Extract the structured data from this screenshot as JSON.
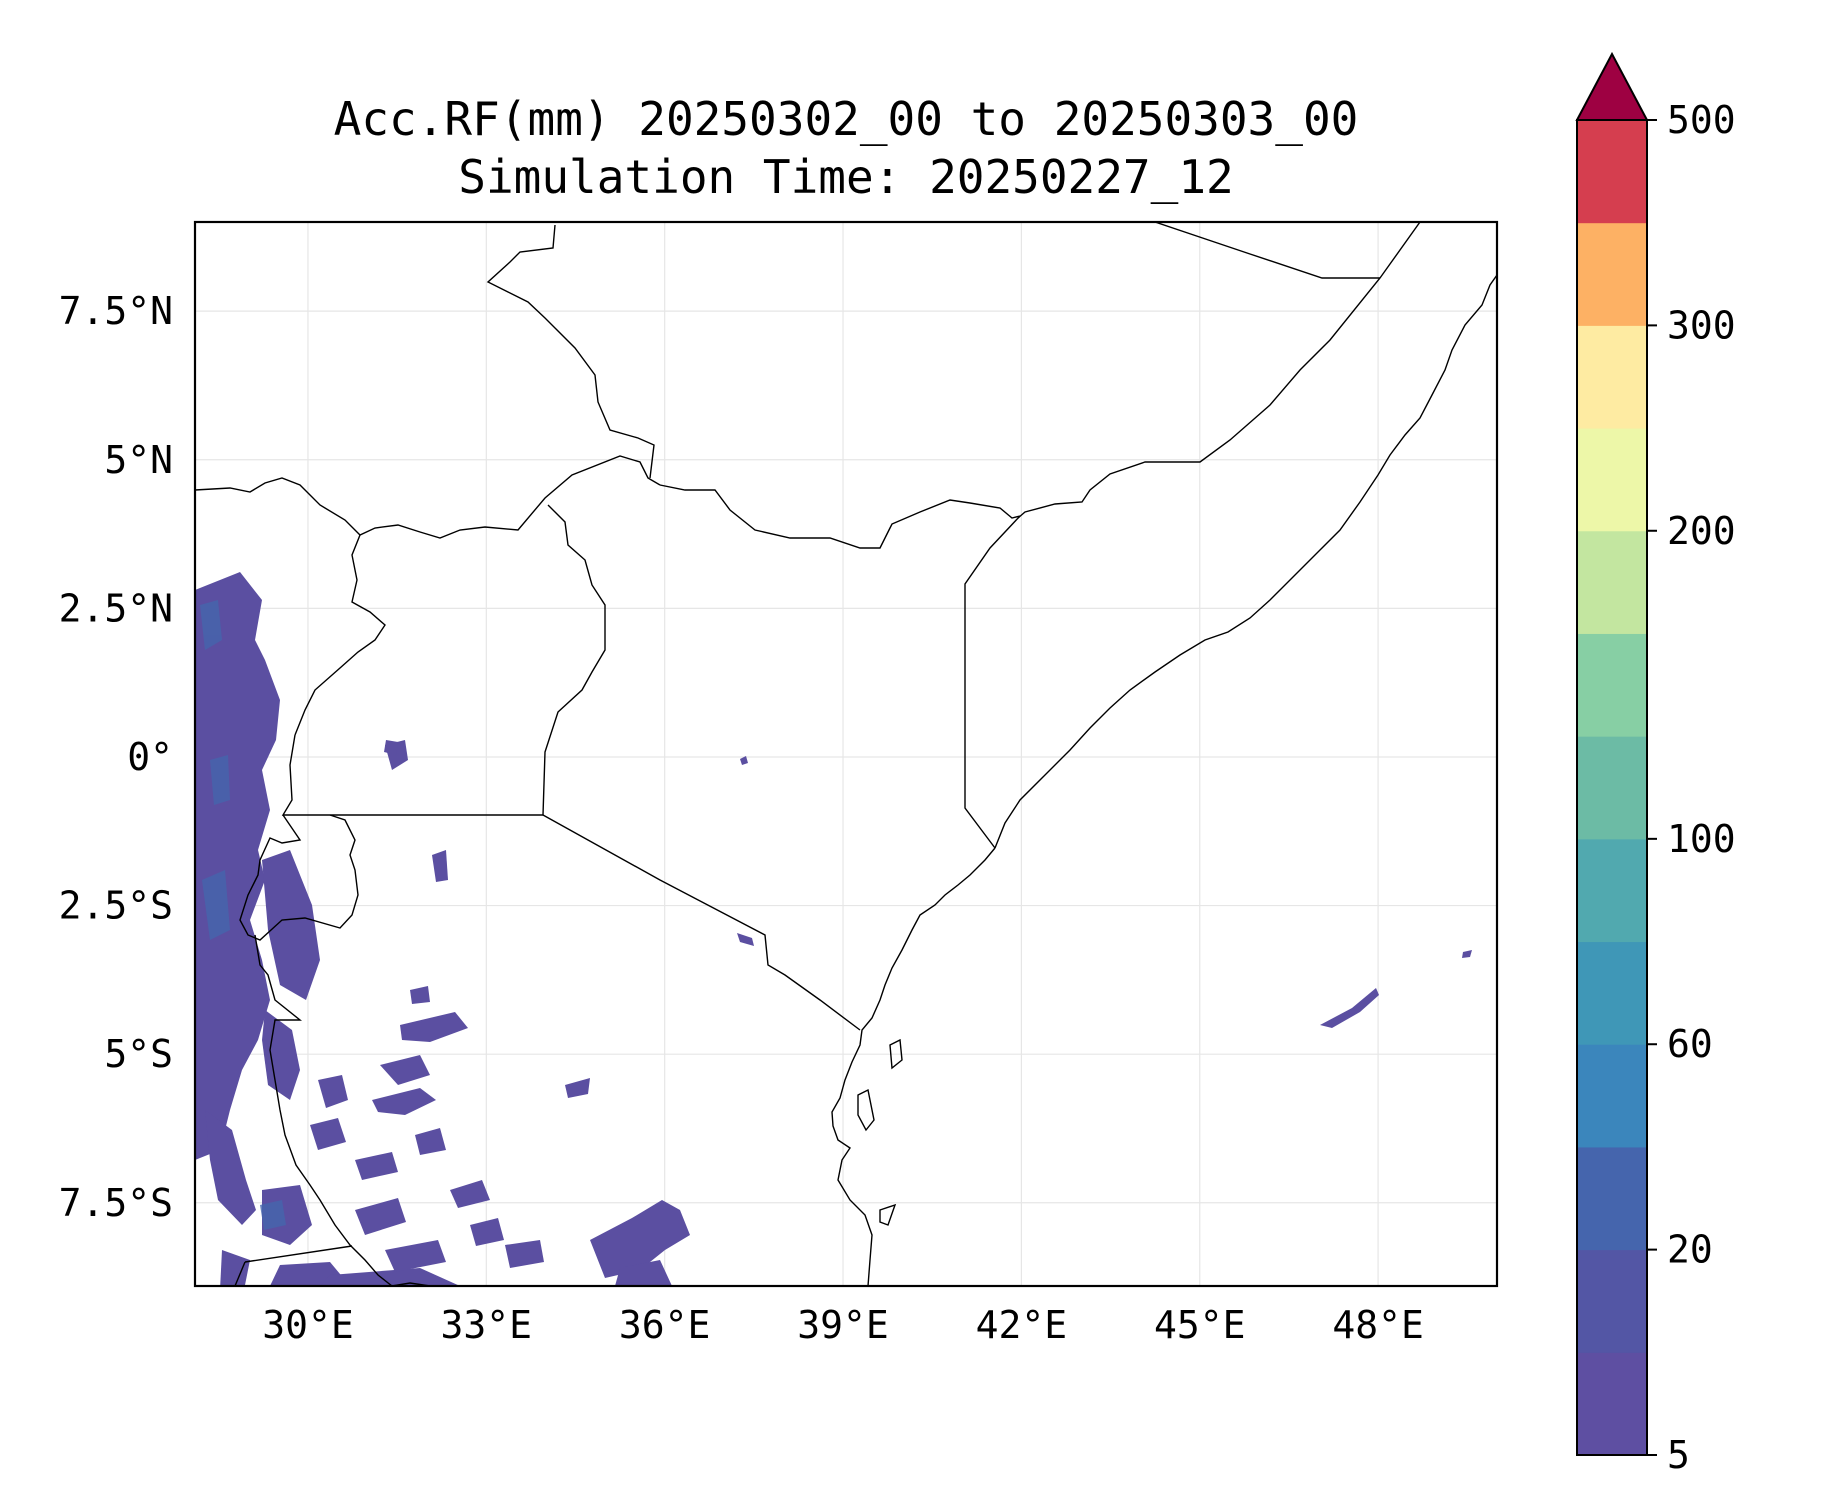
{
  "title": {
    "line1": "Acc.RF(mm) 20250302_00 to 20250303_00",
    "line2": "Simulation Time: 20250227_12"
  },
  "map": {
    "lon_range": [
      28.1,
      50.0
    ],
    "lat_range": [
      -8.9,
      9.0
    ],
    "x_ticks": [
      {
        "value": 30,
        "label": "30°E"
      },
      {
        "value": 33,
        "label": "33°E"
      },
      {
        "value": 36,
        "label": "36°E"
      },
      {
        "value": 39,
        "label": "39°E"
      },
      {
        "value": 42,
        "label": "42°E"
      },
      {
        "value": 45,
        "label": "45°E"
      },
      {
        "value": 48,
        "label": "48°E"
      }
    ],
    "y_ticks": [
      {
        "value": 7.5,
        "label": "7.5°N"
      },
      {
        "value": 5,
        "label": "5°N"
      },
      {
        "value": 2.5,
        "label": "2.5°N"
      },
      {
        "value": 0,
        "label": "0°"
      },
      {
        "value": -2.5,
        "label": "2.5°S"
      },
      {
        "value": -5,
        "label": "5°S"
      },
      {
        "value": -7.5,
        "label": "7.5°S"
      }
    ],
    "grid": true,
    "colors": {
      "grid": "#e6e6e6",
      "border": "#000000",
      "rain": "#5b4fa1"
    }
  },
  "colorbar": {
    "levels": [
      5,
      10,
      20,
      40,
      60,
      80,
      100,
      125,
      150,
      200,
      250,
      300,
      400,
      500
    ],
    "colors": [
      "#5e4fa2",
      "#5356a5",
      "#4565ad",
      "#3b86bc",
      "#3f97b7",
      "#51a9af",
      "#6cbba5",
      "#87cfa4",
      "#c3e6a0",
      "#edf7a8",
      "#feeba2",
      "#fdb164",
      "#d53e4f"
    ],
    "extend_color": "#9e0142",
    "tick_labels": [
      {
        "value": 5,
        "label": "5"
      },
      {
        "value": 20,
        "label": "20"
      },
      {
        "value": 60,
        "label": "60"
      },
      {
        "value": 100,
        "label": "100"
      },
      {
        "value": 200,
        "label": "200"
      },
      {
        "value": 300,
        "label": "300"
      },
      {
        "value": 500,
        "label": "500"
      }
    ]
  }
}
